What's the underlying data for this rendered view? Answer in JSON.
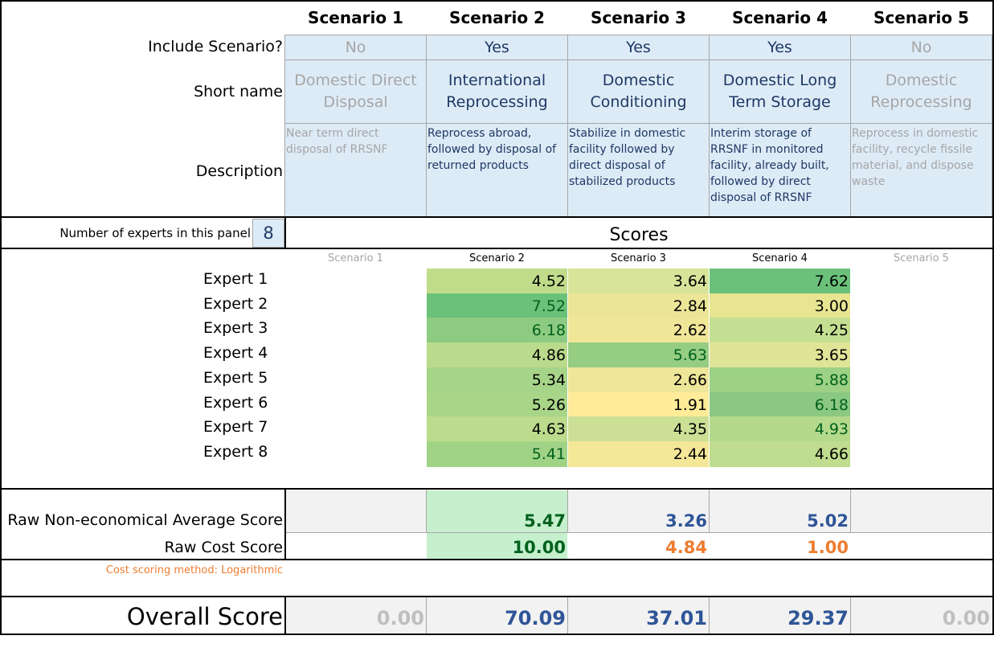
{
  "scenario_headers": [
    "Scenario 1",
    "Scenario 2",
    "Scenario 3",
    "Scenario 4",
    "Scenario 5"
  ],
  "labels": {
    "include": "Include Scenario?",
    "short_name": "Short name",
    "description": "Description",
    "num_experts": "Number of experts in this panel",
    "scores_title": "Scores",
    "raw_non_econ": "Raw Non-economical Average Score",
    "raw_cost": "Raw Cost Score",
    "cost_method": "Cost scoring method: Logarithmic",
    "overall": "Overall Score"
  },
  "num_experts_value": "8",
  "scenarios": [
    {
      "include": "No",
      "short": "Domestic Direct Disposal",
      "desc": "Near term direct disposal of RRSNF"
    },
    {
      "include": "Yes",
      "short": "International Reprocessing",
      "desc": "Reprocess abroad, followed by disposal of returned products"
    },
    {
      "include": "Yes",
      "short": "Domestic Conditioning",
      "desc": "Stabilize in domestic facility followed by direct disposal of stabilized products"
    },
    {
      "include": "Yes",
      "short": "Domestic Long Term Storage",
      "desc": "Interim storage of RRSNF in monitored facility, already built, followed by direct disposal of RRSNF"
    },
    {
      "include": "No",
      "short": "Domestic Reprocessing",
      "desc": "Reprocess in domestic facility, recycle fissile material, and dispose waste"
    }
  ],
  "score_sub_headers": [
    "Scenario 1",
    "Scenario 2",
    "Scenario 3",
    "Scenario 4",
    "Scenario 5"
  ],
  "experts": [
    {
      "name": "Expert 1",
      "s2": "4.52",
      "s3": "3.64",
      "s4": "7.62"
    },
    {
      "name": "Expert 2",
      "s2": "7.52",
      "s3": "2.84",
      "s4": "3.00"
    },
    {
      "name": "Expert 3",
      "s2": "6.18",
      "s3": "2.62",
      "s4": "4.25"
    },
    {
      "name": "Expert 4",
      "s2": "4.86",
      "s3": "5.63",
      "s4": "3.65"
    },
    {
      "name": "Expert 5",
      "s2": "5.34",
      "s3": "2.66",
      "s4": "5.88"
    },
    {
      "name": "Expert 6",
      "s2": "5.26",
      "s3": "1.91",
      "s4": "6.18"
    },
    {
      "name": "Expert 7",
      "s2": "4.63",
      "s3": "4.35",
      "s4": "4.93"
    },
    {
      "name": "Expert 8",
      "s2": "5.41",
      "s3": "2.44",
      "s4": "4.66"
    }
  ],
  "expert_colors": [
    [
      "#c0dc8b",
      "#d7e49a",
      "#6bc17a"
    ],
    [
      "#6bc17a",
      "#ebe597",
      "#e7e592"
    ],
    [
      "#8ecb82",
      "#f0e698",
      "#c5df92"
    ],
    [
      "#bbdb8c",
      "#95cd83",
      "#e0e497"
    ],
    [
      "#a6d488",
      "#eee698",
      "#9dd185"
    ],
    [
      "#a9d588",
      "#ffeb98",
      "#8bc882"
    ],
    [
      "#bcdb8c",
      "#cbe095",
      "#b4d98b"
    ],
    [
      "#a1d387",
      "#f4e797",
      "#c0dc8e"
    ]
  ],
  "raw_non_econ": [
    "5.47",
    "3.26",
    "5.02"
  ],
  "raw_cost": [
    "10.00",
    "4.84",
    "1.00"
  ],
  "overall": [
    "0.00",
    "70.09",
    "37.01",
    "29.37",
    "0.00"
  ],
  "colors": {
    "inactive": "#a6a6a6",
    "active_text": "#1f3864",
    "green_text": "#00611d",
    "orange_text": "#ed7d31",
    "blue_text": "#2f5597",
    "cell_blue": "#ddebf7",
    "highlight_green": "#c6efce",
    "gray_fill": "#f2f2f2"
  }
}
